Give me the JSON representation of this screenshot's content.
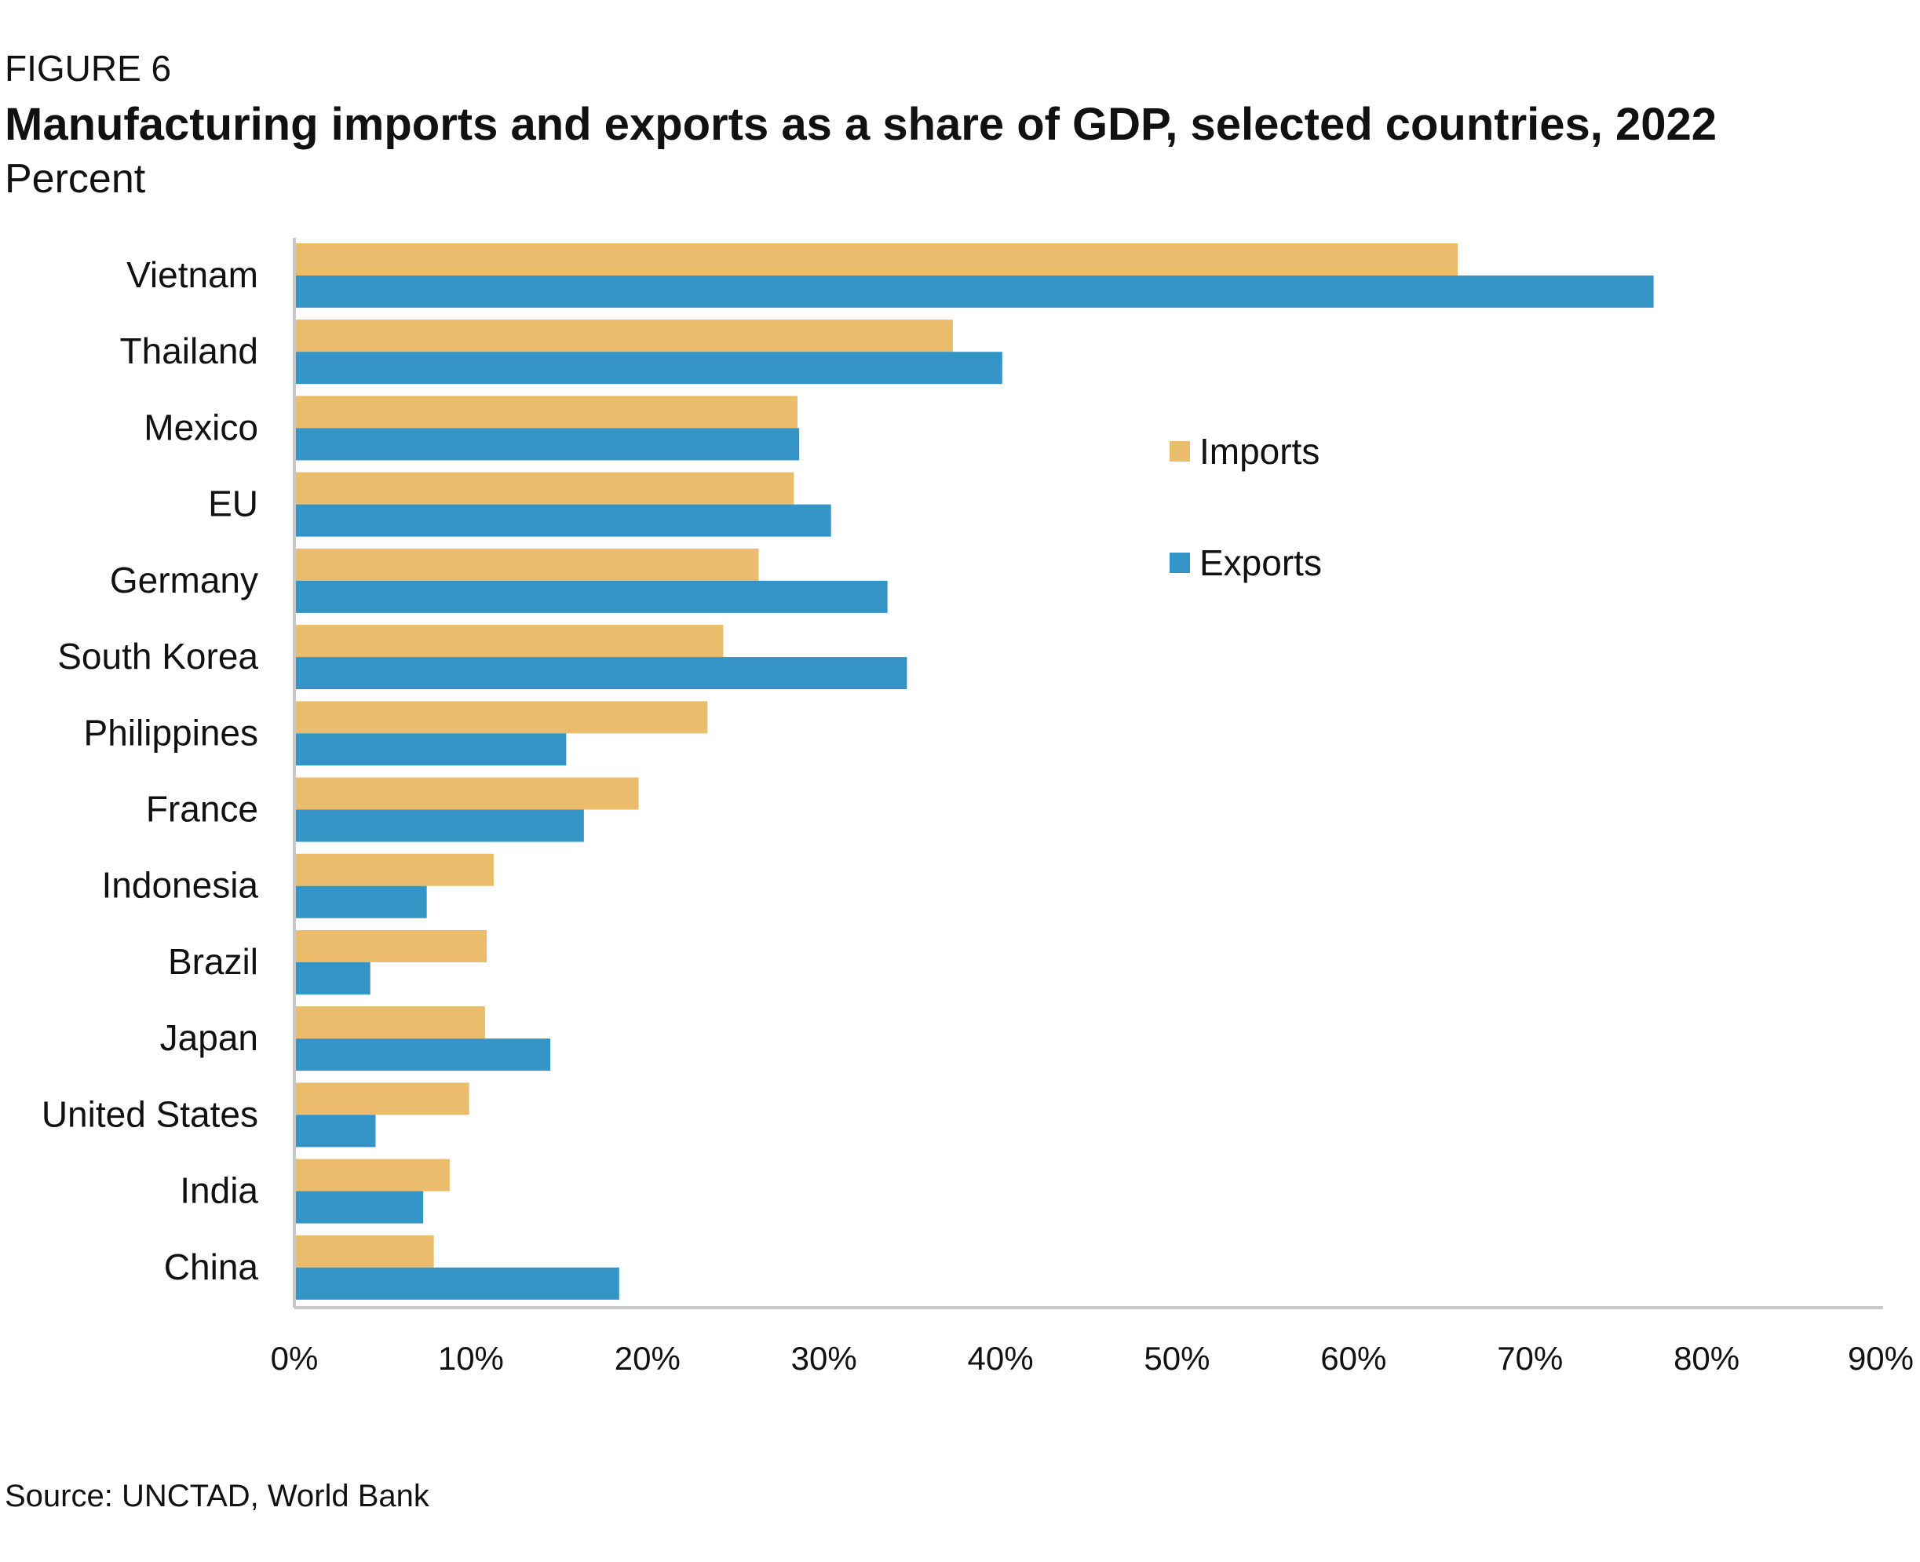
{
  "header": {
    "figure_label": "FIGURE 6",
    "title": "Manufacturing imports and exports as a share of GDP, selected countries, 2022",
    "subtitle": "Percent"
  },
  "footer": {
    "source": "Source: UNCTAD, World Bank"
  },
  "colors": {
    "imports": "#EBBC6B",
    "exports": "#3494C6",
    "axis": "#c8c8c8"
  },
  "chart_data": {
    "type": "bar",
    "orientation": "horizontal",
    "title": "Manufacturing imports and exports as a share of GDP, selected countries, 2022",
    "subtitle": "Percent",
    "categories": [
      "Vietnam",
      "Thailand",
      "Mexico",
      "EU",
      "Germany",
      "South Korea",
      "Philippines",
      "France",
      "Indonesia",
      "Brazil",
      "Japan",
      "United States",
      "India",
      "China"
    ],
    "series": [
      {
        "name": "Imports",
        "values": [
          65.9,
          37.3,
          28.5,
          28.3,
          26.3,
          24.3,
          23.4,
          19.5,
          11.3,
          10.9,
          10.8,
          9.9,
          8.8,
          7.9
        ]
      },
      {
        "name": "Exports",
        "values": [
          77.0,
          40.1,
          28.6,
          30.4,
          33.6,
          34.7,
          15.4,
          16.4,
          7.5,
          4.3,
          14.5,
          4.6,
          7.3,
          18.4
        ]
      }
    ],
    "xlim": [
      0,
      90
    ],
    "xticks": [
      "0%",
      "10%",
      "20%",
      "30%",
      "40%",
      "50%",
      "60%",
      "70%",
      "80%",
      "90%"
    ],
    "grid": false,
    "legend": {
      "position": "center-right",
      "entries": [
        "Imports",
        "Exports"
      ]
    }
  }
}
